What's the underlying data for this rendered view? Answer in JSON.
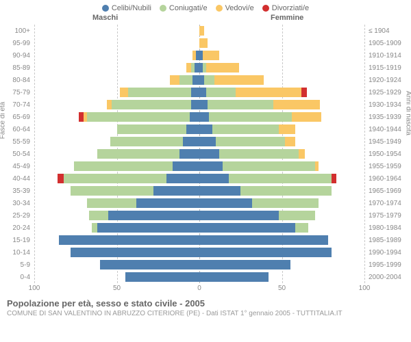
{
  "legend": [
    {
      "label": "Celibi/Nubili",
      "color": "#4f7faf"
    },
    {
      "label": "Coniugati/e",
      "color": "#b5d49c"
    },
    {
      "label": "Vedovi/e",
      "color": "#fac765"
    },
    {
      "label": "Divorziati/e",
      "color": "#d22f2f"
    }
  ],
  "headers": {
    "male": "Maschi",
    "female": "Femmine"
  },
  "axis_left": "Fasce di età",
  "axis_right": "Anni di nascita",
  "xmax": 100,
  "xticks": [
    100,
    50,
    0,
    50,
    100
  ],
  "title": "Popolazione per età, sesso e stato civile - 2005",
  "subtitle": "COMUNE DI SAN VALENTINO IN ABRUZZO CITERIORE (PE) - Dati ISTAT 1° gennaio 2005 - TUTTITALIA.IT",
  "colors": {
    "single": "#4f7faf",
    "married": "#b5d49c",
    "widowed": "#fac765",
    "divorced": "#d22f2f"
  },
  "background": "#ffffff",
  "grid_color": "#c8c8c8",
  "label_fontsize": 10,
  "rows": [
    {
      "age": "100+",
      "birth": "≤ 1904",
      "m": [
        0,
        0,
        0,
        0
      ],
      "f": [
        0,
        0,
        3,
        0
      ]
    },
    {
      "age": "95-99",
      "birth": "1905-1909",
      "m": [
        0,
        0,
        0,
        0
      ],
      "f": [
        0,
        0,
        5,
        0
      ]
    },
    {
      "age": "90-94",
      "birth": "1910-1914",
      "m": [
        2,
        0,
        2,
        0
      ],
      "f": [
        2,
        0,
        10,
        0
      ]
    },
    {
      "age": "85-89",
      "birth": "1915-1919",
      "m": [
        3,
        2,
        3,
        0
      ],
      "f": [
        2,
        2,
        20,
        0
      ]
    },
    {
      "age": "80-84",
      "birth": "1920-1924",
      "m": [
        4,
        8,
        6,
        0
      ],
      "f": [
        3,
        6,
        30,
        0
      ]
    },
    {
      "age": "75-79",
      "birth": "1925-1929",
      "m": [
        5,
        38,
        5,
        0
      ],
      "f": [
        4,
        18,
        40,
        3
      ]
    },
    {
      "age": "70-74",
      "birth": "1930-1934",
      "m": [
        5,
        48,
        3,
        0
      ],
      "f": [
        5,
        40,
        28,
        0
      ]
    },
    {
      "age": "65-69",
      "birth": "1935-1939",
      "m": [
        6,
        62,
        2,
        3
      ],
      "f": [
        6,
        50,
        18,
        0
      ]
    },
    {
      "age": "60-64",
      "birth": "1940-1944",
      "m": [
        8,
        42,
        0,
        0
      ],
      "f": [
        8,
        40,
        10,
        0
      ]
    },
    {
      "age": "55-59",
      "birth": "1945-1949",
      "m": [
        10,
        44,
        0,
        0
      ],
      "f": [
        10,
        42,
        6,
        0
      ]
    },
    {
      "age": "50-54",
      "birth": "1950-1954",
      "m": [
        12,
        50,
        0,
        0
      ],
      "f": [
        12,
        48,
        4,
        0
      ]
    },
    {
      "age": "45-49",
      "birth": "1955-1959",
      "m": [
        16,
        60,
        0,
        0
      ],
      "f": [
        14,
        56,
        2,
        0
      ]
    },
    {
      "age": "40-44",
      "birth": "1960-1964",
      "m": [
        20,
        62,
        0,
        4
      ],
      "f": [
        18,
        62,
        0,
        3
      ]
    },
    {
      "age": "35-39",
      "birth": "1965-1969",
      "m": [
        28,
        50,
        0,
        0
      ],
      "f": [
        25,
        55,
        0,
        0
      ]
    },
    {
      "age": "30-34",
      "birth": "1970-1974",
      "m": [
        38,
        30,
        0,
        0
      ],
      "f": [
        32,
        40,
        0,
        0
      ]
    },
    {
      "age": "25-29",
      "birth": "1975-1979",
      "m": [
        55,
        12,
        0,
        0
      ],
      "f": [
        48,
        22,
        0,
        0
      ]
    },
    {
      "age": "20-24",
      "birth": "1980-1984",
      "m": [
        62,
        3,
        0,
        0
      ],
      "f": [
        58,
        8,
        0,
        0
      ]
    },
    {
      "age": "15-19",
      "birth": "1985-1989",
      "m": [
        85,
        0,
        0,
        0
      ],
      "f": [
        78,
        0,
        0,
        0
      ]
    },
    {
      "age": "10-14",
      "birth": "1990-1994",
      "m": [
        78,
        0,
        0,
        0
      ],
      "f": [
        80,
        0,
        0,
        0
      ]
    },
    {
      "age": "5-9",
      "birth": "1995-1999",
      "m": [
        60,
        0,
        0,
        0
      ],
      "f": [
        55,
        0,
        0,
        0
      ]
    },
    {
      "age": "0-4",
      "birth": "2000-2004",
      "m": [
        45,
        0,
        0,
        0
      ],
      "f": [
        42,
        0,
        0,
        0
      ]
    }
  ]
}
